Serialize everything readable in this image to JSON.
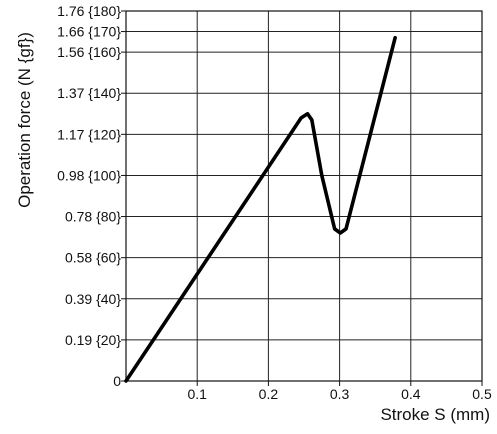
{
  "chart_data": {
    "type": "line",
    "title": "",
    "xlabel": "Stroke S (mm)",
    "ylabel": "Operation force (N {gf})",
    "xlim": [
      0,
      0.5
    ],
    "ylim": [
      0,
      180
    ],
    "grid": true,
    "x_ticks": [
      {
        "value": 0.1,
        "label": "0.1"
      },
      {
        "value": 0.2,
        "label": "0.2"
      },
      {
        "value": 0.3,
        "label": "0.3"
      },
      {
        "value": 0.4,
        "label": "0.4"
      },
      {
        "value": 0.5,
        "label": "0.5"
      }
    ],
    "y_ticks": [
      {
        "value": 0,
        "label": "0"
      },
      {
        "value": 20,
        "label": "0.19 {20}"
      },
      {
        "value": 40,
        "label": "0.39 {40}"
      },
      {
        "value": 60,
        "label": "0.58 {60}"
      },
      {
        "value": 80,
        "label": "0.78 {80}"
      },
      {
        "value": 100,
        "label": "0.98 {100}"
      },
      {
        "value": 120,
        "label": "1.17 {120}"
      },
      {
        "value": 140,
        "label": "1.37 {140}"
      },
      {
        "value": 160,
        "label": "1.56 {160}"
      },
      {
        "value": 170,
        "label": "1.66 {170}"
      },
      {
        "value": 180,
        "label": "1.76 {180}"
      }
    ],
    "series": [
      {
        "color": "#000000",
        "points": [
          {
            "x": 0.0,
            "y": 0
          },
          {
            "x": 0.246,
            "y": 128
          },
          {
            "x": 0.255,
            "y": 130
          },
          {
            "x": 0.261,
            "y": 127
          },
          {
            "x": 0.275,
            "y": 100
          },
          {
            "x": 0.293,
            "y": 74
          },
          {
            "x": 0.301,
            "y": 72
          },
          {
            "x": 0.309,
            "y": 74
          },
          {
            "x": 0.378,
            "y": 167
          }
        ]
      }
    ]
  }
}
